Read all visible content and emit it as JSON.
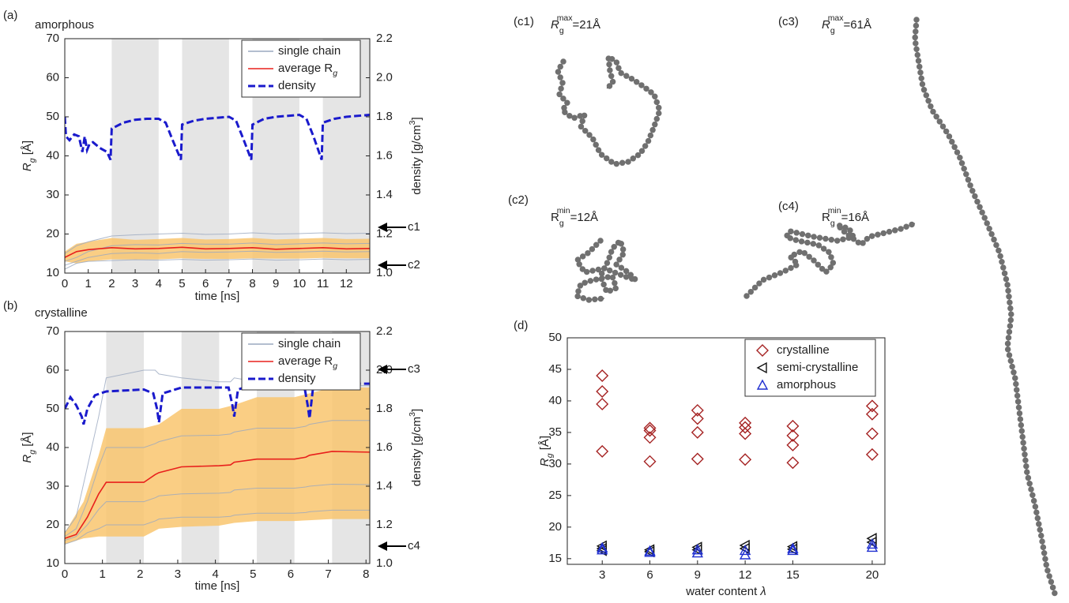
{
  "chart_data": [
    {
      "type": "line",
      "panel_label": "(a)",
      "title": "amorphous",
      "xlabel": "time [ns]",
      "ylabel": [
        "R",
        "g",
        " [Å]"
      ],
      "y2label": [
        "density [g/cm",
        "3",
        "]"
      ],
      "xlim": [
        0,
        13
      ],
      "xticks": [
        0,
        1,
        2,
        3,
        4,
        5,
        6,
        7,
        8,
        9,
        10,
        11,
        12
      ],
      "ylim": [
        10,
        70
      ],
      "yticks": [
        10,
        20,
        30,
        40,
        50,
        60,
        70
      ],
      "y2lim": [
        1.0,
        2.2
      ],
      "y2ticks": [
        {
          "value": 1.0,
          "label": "1.0"
        },
        1.2,
        1.4,
        1.6,
        1.8,
        {
          "value": 2.0,
          "label": "2.0"
        },
        2.2
      ],
      "shaded_x": [
        [
          2,
          4
        ],
        [
          5,
          7
        ],
        [
          8,
          10
        ],
        [
          11,
          13
        ]
      ],
      "band": {
        "color": "#f9c56f",
        "x": [
          0,
          0.5,
          1,
          2,
          3,
          4,
          5,
          6,
          7,
          8,
          9,
          10,
          11,
          12,
          13
        ],
        "lower": [
          13,
          12.5,
          13,
          13.5,
          13.5,
          13.5,
          13.8,
          13.6,
          13.6,
          13.8,
          13.7,
          13.7,
          13.9,
          13.8,
          13.8
        ],
        "upper": [
          15.5,
          17.5,
          18,
          19,
          18.5,
          18.7,
          19,
          18.6,
          18.7,
          19,
          18.6,
          18.8,
          19,
          18.7,
          18.8
        ]
      },
      "series": [
        {
          "name": "single chain",
          "color": "#9aa8bf",
          "x": [
            0,
            0.5,
            1,
            2,
            3,
            4,
            5,
            6,
            7,
            8,
            9,
            10,
            11,
            12,
            13
          ],
          "values": [
            [
              12,
              13,
              14,
              15,
              15.2,
              15,
              15.5,
              15.3,
              15.4,
              15.6,
              15.3,
              15.4,
              15.6,
              15.4,
              15.5
            ],
            [
              15,
              17,
              18,
              19.5,
              19.8,
              20,
              20.2,
              19.9,
              20,
              20.3,
              20,
              20.1,
              20.3,
              20.1,
              20.2
            ],
            [
              13,
              14,
              15.5,
              17,
              17.3,
              17.2,
              17.6,
              17.4,
              17.4,
              17.7,
              17.3,
              17.5,
              17.7,
              17.5,
              17.6
            ],
            [
              11,
              12.5,
              13,
              13.2,
              13.4,
              13.3,
              13.5,
              13.3,
              13.4,
              13.6,
              13.3,
              13.4,
              13.6,
              13.4,
              13.5
            ]
          ]
        },
        {
          "name": [
            "average R",
            "g"
          ],
          "color": "#e8201c",
          "x": [
            0,
            0.5,
            1,
            2,
            3,
            4,
            5,
            6,
            7,
            8,
            9,
            10,
            11,
            12,
            13
          ],
          "values": [
            14,
            15.5,
            16,
            16.5,
            16.2,
            16.3,
            16.6,
            16.2,
            16.3,
            16.5,
            16.1,
            16.3,
            16.5,
            16.2,
            16.3
          ]
        },
        {
          "name": "density",
          "color": "#1a1acc",
          "dashed": true,
          "axis": "y2",
          "x": [
            0,
            0.05,
            0.2,
            0.4,
            0.6,
            0.75,
            0.85,
            0.95,
            1.05,
            1.2,
            1.5,
            1.8,
            1.95,
            2,
            2.5,
            3,
            3.5,
            4,
            4.3,
            4.6,
            4.95,
            5,
            5.5,
            6,
            7,
            7.3,
            7.6,
            7.95,
            8,
            8.5,
            9,
            10,
            10.3,
            10.6,
            10.95,
            11,
            11.5,
            12,
            13
          ],
          "values": [
            1.8,
            1.7,
            1.68,
            1.71,
            1.7,
            1.62,
            1.7,
            1.63,
            1.66,
            1.67,
            1.64,
            1.62,
            1.58,
            1.74,
            1.77,
            1.785,
            1.79,
            1.79,
            1.77,
            1.68,
            1.58,
            1.76,
            1.78,
            1.79,
            1.8,
            1.78,
            1.69,
            1.58,
            1.76,
            1.79,
            1.8,
            1.81,
            1.79,
            1.7,
            1.58,
            1.77,
            1.79,
            1.8,
            1.81
          ]
        }
      ],
      "legend": "upper right",
      "annotations": [
        "c1",
        "c2"
      ]
    },
    {
      "type": "line",
      "panel_label": "(b)",
      "title": "crystalline",
      "xlabel": "time [ns]",
      "ylabel": [
        "R",
        "g",
        " [Å]"
      ],
      "y2label": [
        "density [g/cm",
        "3",
        "]"
      ],
      "xlim": [
        0,
        8.1
      ],
      "xticks": [
        0,
        1,
        2,
        3,
        4,
        5,
        6,
        7,
        8
      ],
      "ylim": [
        10,
        70
      ],
      "yticks": [
        10,
        20,
        30,
        40,
        50,
        60,
        70
      ],
      "y2lim": [
        1.0,
        2.2
      ],
      "y2ticks": [
        {
          "value": 1.0,
          "label": "1.0"
        },
        1.2,
        1.4,
        1.6,
        1.8,
        {
          "value": 2.0,
          "label": "2.0"
        },
        2.2
      ],
      "shaded_x": [
        [
          1.1,
          2.1
        ],
        [
          3.1,
          4.1
        ],
        [
          5.1,
          6.1
        ],
        [
          7.1,
          8.1
        ]
      ],
      "band": {
        "color": "#f9c56f",
        "x": [
          0,
          0.5,
          0.9,
          1.1,
          2.1,
          2.5,
          3.1,
          4.1,
          4.5,
          5.1,
          6.1,
          6.5,
          7.1,
          8.1
        ],
        "lower": [
          15,
          16.5,
          17,
          17,
          17,
          19,
          19.5,
          19.8,
          20.5,
          21,
          21,
          21.2,
          21.5,
          21.5
        ],
        "upper": [
          18,
          26,
          38,
          45,
          45,
          46,
          50,
          50,
          51,
          53,
          53,
          54,
          55.5,
          55.5
        ]
      },
      "series": [
        {
          "name": "single chain",
          "color": "#9aa8bf",
          "x": [
            0,
            0.3,
            0.6,
            0.9,
            1.1,
            2.1,
            2.4,
            2.5,
            3.1,
            4.1,
            4.4,
            4.5,
            5.1,
            6.1,
            6.4,
            6.5,
            7.1,
            8.1
          ],
          "values": [
            [
              16,
              17,
              20,
              24,
              26,
              26,
              27,
              27.5,
              28,
              28.2,
              28.4,
              29,
              29.5,
              29.5,
              29.8,
              30,
              30.5,
              30.4
            ],
            [
              17,
              19,
              26,
              35,
              40,
              40,
              41,
              41.5,
              43,
              43.2,
              43.5,
              44,
              45,
              45,
              45.5,
              46,
              47,
              47
            ],
            [
              15,
              16,
              18,
              19,
              20,
              20,
              21,
              21.5,
              22,
              22,
              22.2,
              22.5,
              23,
              23,
              23.2,
              23.4,
              23.8,
              23.8
            ],
            [
              18,
              22,
              35,
              48,
              58,
              60,
              60,
              59,
              58,
              57,
              57,
              58,
              57,
              57,
              56,
              56,
              56,
              56
            ]
          ]
        },
        {
          "name": [
            "average R",
            "g"
          ],
          "color": "#e8201c",
          "x": [
            0,
            0.3,
            0.6,
            0.9,
            1.1,
            2.1,
            2.4,
            2.5,
            3.1,
            4.1,
            4.4,
            4.5,
            5.1,
            6.1,
            6.4,
            6.5,
            7.1,
            8.1
          ],
          "values": [
            16.5,
            17.5,
            22,
            28,
            31,
            31,
            33,
            33.5,
            35,
            35.3,
            35.5,
            36.2,
            37,
            37,
            37.5,
            38,
            39,
            38.8
          ]
        },
        {
          "name": "density",
          "color": "#1a1acc",
          "dashed": true,
          "axis": "y2",
          "x": [
            0,
            0.15,
            0.3,
            0.45,
            0.5,
            0.6,
            0.8,
            1.1,
            2.1,
            2.35,
            2.45,
            2.5,
            2.6,
            3.1,
            4.35,
            4.45,
            4.5,
            4.6,
            5.1,
            6.35,
            6.45,
            6.5,
            6.6,
            7.1,
            8.1
          ],
          "values": [
            1.8,
            1.86,
            1.82,
            1.76,
            1.72,
            1.8,
            1.87,
            1.89,
            1.9,
            1.88,
            1.8,
            1.73,
            1.88,
            1.91,
            1.91,
            1.82,
            1.76,
            1.9,
            1.93,
            1.93,
            1.82,
            1.75,
            1.92,
            1.93,
            1.93
          ]
        }
      ],
      "legend": "upper right",
      "annotations": [
        "c3",
        "c4"
      ]
    },
    {
      "type": "scatter",
      "panel_label": "(d)",
      "xlabel": [
        "water content ",
        "λ"
      ],
      "ylabel": [
        "R",
        "g",
        " [Å]"
      ],
      "xlim": [
        0.8,
        20.8
      ],
      "xticks": [
        3,
        6,
        9,
        12,
        15,
        20
      ],
      "ylim": [
        14.1,
        50
      ],
      "yticks": [
        15,
        20,
        25,
        30,
        35,
        40,
        45,
        50
      ],
      "series": [
        {
          "name": "crystalline",
          "marker": "diamond",
          "color": "#a52222",
          "x": [
            3,
            3,
            3,
            3,
            6,
            6,
            6,
            6,
            9,
            9,
            9,
            9,
            12,
            12,
            12,
            12,
            15,
            15,
            15,
            15,
            20,
            20,
            20,
            20
          ],
          "values": [
            44,
            41.5,
            39.5,
            32,
            35.7,
            35.3,
            34.2,
            30.4,
            38.5,
            37.2,
            35,
            30.8,
            36.5,
            35.8,
            34.8,
            30.7,
            36,
            34.5,
            33,
            30.2,
            39.2,
            37.9,
            34.8,
            31.5
          ]
        },
        {
          "name": "semi-crystalline",
          "marker": "triangle-left",
          "color": "#111111",
          "x": [
            3,
            3,
            3,
            6,
            6,
            9,
            9,
            12,
            12,
            15,
            15,
            20,
            20
          ],
          "values": [
            17,
            16.6,
            16.3,
            16.4,
            16.1,
            16.8,
            16.4,
            17.1,
            16.6,
            16.9,
            16.5,
            18.2,
            17.6
          ]
        },
        {
          "name": "amorphous",
          "marker": "triangle-up",
          "color": "#1f2fd0",
          "x": [
            3,
            3,
            6,
            6,
            9,
            9,
            12,
            12,
            15,
            15,
            20,
            20
          ],
          "values": [
            16.7,
            16.4,
            16.2,
            16,
            16.4,
            15.9,
            16.3,
            15.6,
            16.6,
            16.3,
            17.3,
            16.8
          ]
        }
      ],
      "legend": "upper right"
    }
  ],
  "structures": [
    {
      "label": "(c1)",
      "caption": [
        "R",
        "g",
        "max",
        "=21Å"
      ]
    },
    {
      "label": "(c2)",
      "caption": [
        "R",
        "g",
        "min",
        "=12Å"
      ]
    },
    {
      "label": "(c3)",
      "caption": [
        "R",
        "g",
        "max",
        "=61Å"
      ]
    },
    {
      "label": "(c4)",
      "caption": [
        "R",
        "g",
        "min",
        "=16Å"
      ]
    }
  ]
}
